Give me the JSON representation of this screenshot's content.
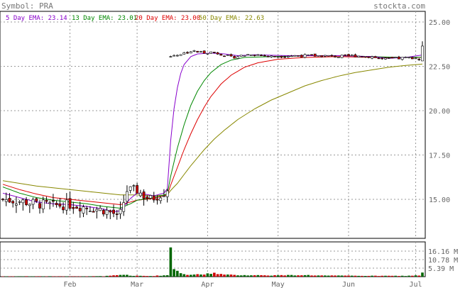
{
  "header": {
    "symbol_label": "Symbol: PRA",
    "site": "stockta.com"
  },
  "colors": {
    "ema5": "#8800cc",
    "ema13": "#008800",
    "ema20": "#dd0000",
    "ema50": "#888800",
    "up": "#ffffff",
    "down": "#cc0000",
    "vol_up": "#006600",
    "vol_down": "#cc0000"
  },
  "chart_data": {
    "type": "candlestick",
    "legend": [
      {
        "key": "ema5",
        "label": "5 Day EMA: 23.14"
      },
      {
        "key": "ema13",
        "label": "13 Day EMA: 23.01"
      },
      {
        "key": "ema20",
        "label": "20 Day EMA: 23.00"
      },
      {
        "key": "ema50",
        "label": "50 Day EMA: 22.63"
      }
    ],
    "price_axis": {
      "ticks": [
        "25.00",
        "22.50",
        "20.00",
        "17.50",
        "15.00"
      ],
      "ylim": [
        12.8,
        25.6
      ]
    },
    "volume_axis": {
      "ticks": [
        "16.16 M",
        "10.78 M",
        "5.39 M"
      ],
      "ylim": [
        0,
        22
      ]
    },
    "x_ticks": [
      {
        "label": "Feb",
        "day": 20
      },
      {
        "label": "Mar",
        "day": 40
      },
      {
        "label": "Apr",
        "day": 61
      },
      {
        "label": "May",
        "day": 82
      },
      {
        "label": "Jun",
        "day": 103
      },
      {
        "label": "Jul",
        "day": 123
      }
    ],
    "day_count": 126,
    "anchors": {
      "close": [
        [
          0,
          15.0
        ],
        [
          5,
          14.9
        ],
        [
          10,
          14.75
        ],
        [
          15,
          14.65
        ],
        [
          20,
          14.7
        ],
        [
          25,
          14.55
        ],
        [
          30,
          14.4
        ],
        [
          33,
          14.2
        ],
        [
          34,
          13.95
        ],
        [
          35,
          14.2
        ],
        [
          37,
          15.5
        ],
        [
          40,
          15.5
        ],
        [
          42,
          15.2
        ],
        [
          44,
          15.0
        ],
        [
          46,
          15.2
        ],
        [
          48,
          15.4
        ],
        [
          49,
          15.6
        ],
        [
          50,
          23.1
        ],
        [
          53,
          23.2
        ],
        [
          56,
          23.35
        ],
        [
          59,
          23.3
        ],
        [
          62,
          23.3
        ],
        [
          65,
          23.2
        ],
        [
          68,
          23.0
        ],
        [
          71,
          23.1
        ],
        [
          74,
          23.2
        ],
        [
          80,
          23.05
        ],
        [
          85,
          23.1
        ],
        [
          90,
          23.1
        ],
        [
          95,
          23.1
        ],
        [
          100,
          23.05
        ],
        [
          105,
          23.1
        ],
        [
          110,
          23.05
        ],
        [
          113,
          22.9
        ],
        [
          118,
          22.95
        ],
        [
          122,
          23.0
        ],
        [
          124,
          22.95
        ],
        [
          125,
          23.7
        ]
      ],
      "ema5": [
        [
          0,
          15.35
        ],
        [
          5,
          15.1
        ],
        [
          10,
          14.85
        ],
        [
          15,
          14.75
        ],
        [
          20,
          14.7
        ],
        [
          25,
          14.6
        ],
        [
          30,
          14.45
        ],
        [
          33,
          14.3
        ],
        [
          35,
          14.35
        ],
        [
          38,
          15.05
        ],
        [
          40,
          15.35
        ],
        [
          42,
          15.3
        ],
        [
          45,
          15.2
        ],
        [
          48,
          15.35
        ],
        [
          49,
          15.6
        ],
        [
          50,
          18.3
        ],
        [
          51,
          20.1
        ],
        [
          52,
          21.3
        ],
        [
          53,
          22.1
        ],
        [
          54,
          22.6
        ],
        [
          56,
          23.05
        ],
        [
          58,
          23.2
        ],
        [
          62,
          23.25
        ],
        [
          66,
          23.2
        ],
        [
          70,
          23.1
        ],
        [
          75,
          23.15
        ],
        [
          85,
          23.1
        ],
        [
          100,
          23.1
        ],
        [
          110,
          23.05
        ],
        [
          115,
          22.95
        ],
        [
          120,
          23.0
        ],
        [
          125,
          23.14
        ]
      ],
      "ema13": [
        [
          0,
          15.7
        ],
        [
          5,
          15.35
        ],
        [
          10,
          15.1
        ],
        [
          15,
          14.95
        ],
        [
          20,
          14.85
        ],
        [
          25,
          14.75
        ],
        [
          30,
          14.6
        ],
        [
          35,
          14.5
        ],
        [
          38,
          14.75
        ],
        [
          40,
          14.95
        ],
        [
          45,
          15.1
        ],
        [
          49,
          15.3
        ],
        [
          50,
          16.3
        ],
        [
          52,
          17.9
        ],
        [
          54,
          19.2
        ],
        [
          56,
          20.3
        ],
        [
          58,
          21.1
        ],
        [
          60,
          21.7
        ],
        [
          62,
          22.15
        ],
        [
          65,
          22.6
        ],
        [
          68,
          22.85
        ],
        [
          72,
          23.0
        ],
        [
          80,
          23.05
        ],
        [
          90,
          23.1
        ],
        [
          100,
          23.1
        ],
        [
          110,
          23.05
        ],
        [
          118,
          23.0
        ],
        [
          125,
          23.01
        ]
      ],
      "ema20": [
        [
          0,
          15.85
        ],
        [
          5,
          15.55
        ],
        [
          10,
          15.3
        ],
        [
          15,
          15.1
        ],
        [
          20,
          15.0
        ],
        [
          25,
          14.9
        ],
        [
          30,
          14.8
        ],
        [
          35,
          14.7
        ],
        [
          40,
          14.95
        ],
        [
          45,
          15.05
        ],
        [
          49,
          15.25
        ],
        [
          50,
          15.8
        ],
        [
          52,
          16.8
        ],
        [
          54,
          17.8
        ],
        [
          56,
          18.7
        ],
        [
          58,
          19.5
        ],
        [
          60,
          20.2
        ],
        [
          62,
          20.8
        ],
        [
          65,
          21.5
        ],
        [
          68,
          22.0
        ],
        [
          72,
          22.45
        ],
        [
          76,
          22.7
        ],
        [
          82,
          22.9
        ],
        [
          90,
          23.0
        ],
        [
          100,
          23.05
        ],
        [
          110,
          23.0
        ],
        [
          118,
          23.0
        ],
        [
          125,
          23.0
        ]
      ],
      "ema50": [
        [
          0,
          16.05
        ],
        [
          5,
          15.9
        ],
        [
          10,
          15.75
        ],
        [
          15,
          15.65
        ],
        [
          20,
          15.55
        ],
        [
          25,
          15.45
        ],
        [
          30,
          15.35
        ],
        [
          35,
          15.25
        ],
        [
          40,
          15.25
        ],
        [
          45,
          15.2
        ],
        [
          49,
          15.25
        ],
        [
          50,
          15.5
        ],
        [
          52,
          15.9
        ],
        [
          54,
          16.4
        ],
        [
          56,
          16.9
        ],
        [
          58,
          17.35
        ],
        [
          60,
          17.8
        ],
        [
          63,
          18.4
        ],
        [
          66,
          18.9
        ],
        [
          70,
          19.5
        ],
        [
          75,
          20.1
        ],
        [
          80,
          20.6
        ],
        [
          85,
          21.0
        ],
        [
          90,
          21.4
        ],
        [
          95,
          21.7
        ],
        [
          100,
          21.95
        ],
        [
          105,
          22.15
        ],
        [
          110,
          22.3
        ],
        [
          115,
          22.45
        ],
        [
          120,
          22.55
        ],
        [
          125,
          22.63
        ]
      ]
    },
    "volume_anchors": [
      [
        0,
        0.2
      ],
      [
        5,
        0.25
      ],
      [
        10,
        0.25
      ],
      [
        20,
        0.2
      ],
      [
        30,
        0.3
      ],
      [
        37,
        1.2
      ],
      [
        38,
        0.6
      ],
      [
        44,
        0.4
      ],
      [
        49,
        0.9
      ],
      [
        50,
        18.5
      ],
      [
        51,
        6.0
      ],
      [
        52,
        3.0
      ],
      [
        53,
        1.8
      ],
      [
        55,
        1.2
      ],
      [
        58,
        1.3
      ],
      [
        60,
        1.5
      ],
      [
        63,
        2.4
      ],
      [
        64,
        2.0
      ],
      [
        66,
        1.2
      ],
      [
        70,
        1.0
      ],
      [
        75,
        0.9
      ],
      [
        80,
        0.8
      ],
      [
        85,
        0.9
      ],
      [
        90,
        1.0
      ],
      [
        95,
        0.7
      ],
      [
        100,
        0.6
      ],
      [
        105,
        0.6
      ],
      [
        110,
        0.5
      ],
      [
        115,
        0.5
      ],
      [
        120,
        0.5
      ],
      [
        124,
        0.8
      ],
      [
        125,
        3.0
      ]
    ]
  }
}
